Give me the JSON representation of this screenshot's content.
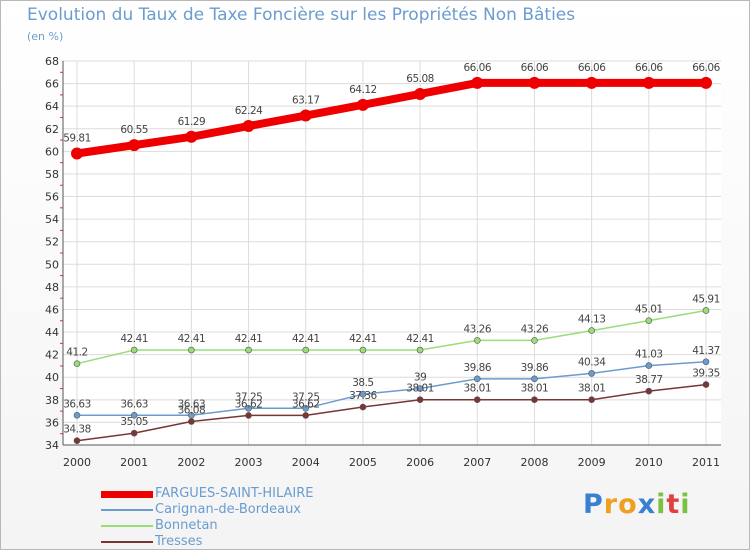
{
  "header": {
    "title": "Evolution du Taux de Taxe Foncière sur les Propriétés Non Bâties",
    "subtitle": "(en %)"
  },
  "logo": {
    "letters": [
      "P",
      "r",
      "o",
      "x",
      "i",
      "t",
      "i"
    ],
    "colors": [
      "#3a7fd0",
      "#f0a020",
      "#f0a020",
      "#3a7fd0",
      "#7bc142",
      "#e04040",
      "#7bc142"
    ]
  },
  "chart_data": {
    "type": "line",
    "x": [
      "2000",
      "2001",
      "2002",
      "2003",
      "2004",
      "2005",
      "2006",
      "2007",
      "2008",
      "2009",
      "2010",
      "2011"
    ],
    "ylim": [
      34,
      68
    ],
    "yticks": [
      34,
      36,
      38,
      40,
      42,
      44,
      46,
      48,
      50,
      52,
      54,
      56,
      58,
      60,
      62,
      64,
      66,
      68
    ],
    "grid": true,
    "legend_position": "bottom-left",
    "series": [
      {
        "name": "FARGUES-SAINT-HILAIRE",
        "color": "#ee0000",
        "values": [
          59.81,
          60.55,
          61.29,
          62.24,
          63.17,
          64.12,
          65.08,
          66.06,
          66.06,
          66.06,
          66.06,
          66.06
        ],
        "labels": [
          "59.81",
          "60.55",
          "61.29",
          "62.24",
          "63.17",
          "64.12",
          "65.08",
          "66.06",
          "66.06",
          "66.06",
          "66.06",
          "66.06"
        ]
      },
      {
        "name": "Carignan-de-Bordeaux",
        "color": "#6a9ccf",
        "values": [
          36.63,
          36.63,
          36.63,
          37.25,
          37.25,
          38.5,
          39,
          39.86,
          39.86,
          40.34,
          41.03,
          41.37
        ],
        "labels": [
          "36.63",
          "36.63",
          "36.63",
          "37.25",
          "37.25",
          "38.5",
          "39",
          "39.86",
          "39.86",
          "40.34",
          "41.03",
          "41.37"
        ]
      },
      {
        "name": "Bonnetan",
        "color": "#99dd77",
        "values": [
          41.2,
          42.41,
          42.41,
          42.41,
          42.41,
          42.41,
          42.41,
          43.26,
          43.26,
          44.13,
          45.01,
          45.91
        ],
        "labels": [
          "41.2",
          "42.41",
          "42.41",
          "42.41",
          "42.41",
          "42.41",
          "42.41",
          "43.26",
          "43.26",
          "44.13",
          "45.01",
          "45.91"
        ]
      },
      {
        "name": "Tresses",
        "color": "#7a3535",
        "values": [
          34.38,
          35.05,
          36.08,
          36.62,
          36.62,
          37.36,
          38.01,
          38.01,
          38.01,
          38.01,
          38.77,
          39.35
        ],
        "labels": [
          "34.38",
          "35.05",
          "36.08",
          "36.62",
          "36.62",
          "37.36",
          "38.01",
          "38.01",
          "38.01",
          "38.01",
          "38.77",
          "39.35"
        ]
      }
    ]
  }
}
